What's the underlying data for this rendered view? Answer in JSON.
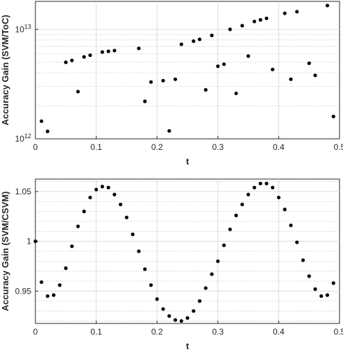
{
  "chart_data": [
    {
      "type": "scatter",
      "xlabel": "t",
      "ylabel": "Accuracy Gain (SVM/ToC)",
      "xlim": [
        0,
        0.5
      ],
      "ylim": [
        1000000000000.0,
        18000000000000.0
      ],
      "yscale": "log",
      "x_ticks": [
        0,
        0.1,
        0.2,
        0.3,
        0.4,
        0.5
      ],
      "x_tick_labels": [
        "0",
        "0.1",
        "0.2",
        "0.3",
        "0.4",
        "0.5"
      ],
      "y_ticks": [
        1000000000000.0,
        10000000000000.0
      ],
      "y_tick_labels": [
        {
          "base": "10",
          "exp": "12"
        },
        {
          "base": "10",
          "exp": "13"
        }
      ],
      "grid": true,
      "minor_grid": true,
      "marker_color": "#000000",
      "points": {
        "x": [
          0.01,
          0.02,
          0.05,
          0.06,
          0.07,
          0.08,
          0.09,
          0.11,
          0.12,
          0.13,
          0.17,
          0.18,
          0.19,
          0.21,
          0.22,
          0.23,
          0.24,
          0.26,
          0.27,
          0.28,
          0.29,
          0.3,
          0.31,
          0.32,
          0.33,
          0.34,
          0.35,
          0.36,
          0.37,
          0.38,
          0.39,
          0.41,
          0.42,
          0.43,
          0.45,
          0.46,
          0.48,
          0.49
        ],
        "y": [
          1450000000000.0,
          1170000000000.0,
          5000000000000.0,
          5200000000000.0,
          2700000000000.0,
          5600000000000.0,
          5800000000000.0,
          6200000000000.0,
          6300000000000.0,
          6400000000000.0,
          6700000000000.0,
          2200000000000.0,
          3300000000000.0,
          3400000000000.0,
          1180000000000.0,
          3500000000000.0,
          7300000000000.0,
          7800000000000.0,
          8100000000000.0,
          2800000000000.0,
          8800000000000.0,
          4600000000000.0,
          4800000000000.0,
          10000000000000.0,
          2600000000000.0,
          10800000000000.0,
          5700000000000.0,
          11800000000000.0,
          12200000000000.0,
          12600000000000.0,
          4300000000000.0,
          14000000000000.0,
          3500000000000.0,
          14500000000000.0,
          4900000000000.0,
          3800000000000.0,
          16500000000000.0,
          1600000000000.0
        ]
      }
    },
    {
      "type": "scatter",
      "xlabel": "t",
      "ylabel": "Accuracy Gain (SVM/CSVM)",
      "xlim": [
        0,
        0.5
      ],
      "ylim": [
        0.9175,
        1.0625
      ],
      "x_ticks": [
        0,
        0.1,
        0.2,
        0.3,
        0.4,
        0.5
      ],
      "x_tick_labels": [
        "0",
        "0.1",
        "0.2",
        "0.3",
        "0.4",
        "0.5"
      ],
      "y_ticks": [
        0.95,
        1,
        1.05
      ],
      "y_tick_labels": [
        "0.95",
        "1",
        "1.05"
      ],
      "grid": true,
      "minor_grid": true,
      "marker_color": "#000000",
      "points": {
        "x": [
          0,
          0.01,
          0.02,
          0.03,
          0.04,
          0.05,
          0.06,
          0.07,
          0.08,
          0.09,
          0.1,
          0.11,
          0.12,
          0.13,
          0.14,
          0.15,
          0.16,
          0.17,
          0.18,
          0.19,
          0.2,
          0.21,
          0.22,
          0.23,
          0.24,
          0.25,
          0.26,
          0.27,
          0.28,
          0.29,
          0.3,
          0.31,
          0.32,
          0.33,
          0.34,
          0.35,
          0.36,
          0.37,
          0.38,
          0.39,
          0.4,
          0.41,
          0.42,
          0.43,
          0.44,
          0.45,
          0.46,
          0.47,
          0.48,
          0.49
        ],
        "y": [
          1.0,
          0.959,
          0.945,
          0.946,
          0.956,
          0.973,
          0.995,
          1.015,
          1.03,
          1.044,
          1.052,
          1.055,
          1.054,
          1.047,
          1.037,
          1.024,
          1.007,
          0.99,
          0.972,
          0.956,
          0.942,
          0.932,
          0.925,
          0.921,
          0.92,
          0.923,
          0.93,
          0.94,
          0.953,
          0.967,
          0.98,
          0.996,
          1.012,
          1.026,
          1.037,
          1.047,
          1.054,
          1.058,
          1.058,
          1.054,
          1.044,
          1.032,
          1.016,
          0.999,
          0.981,
          0.965,
          0.952,
          0.945,
          0.946,
          0.958
        ]
      }
    }
  ]
}
